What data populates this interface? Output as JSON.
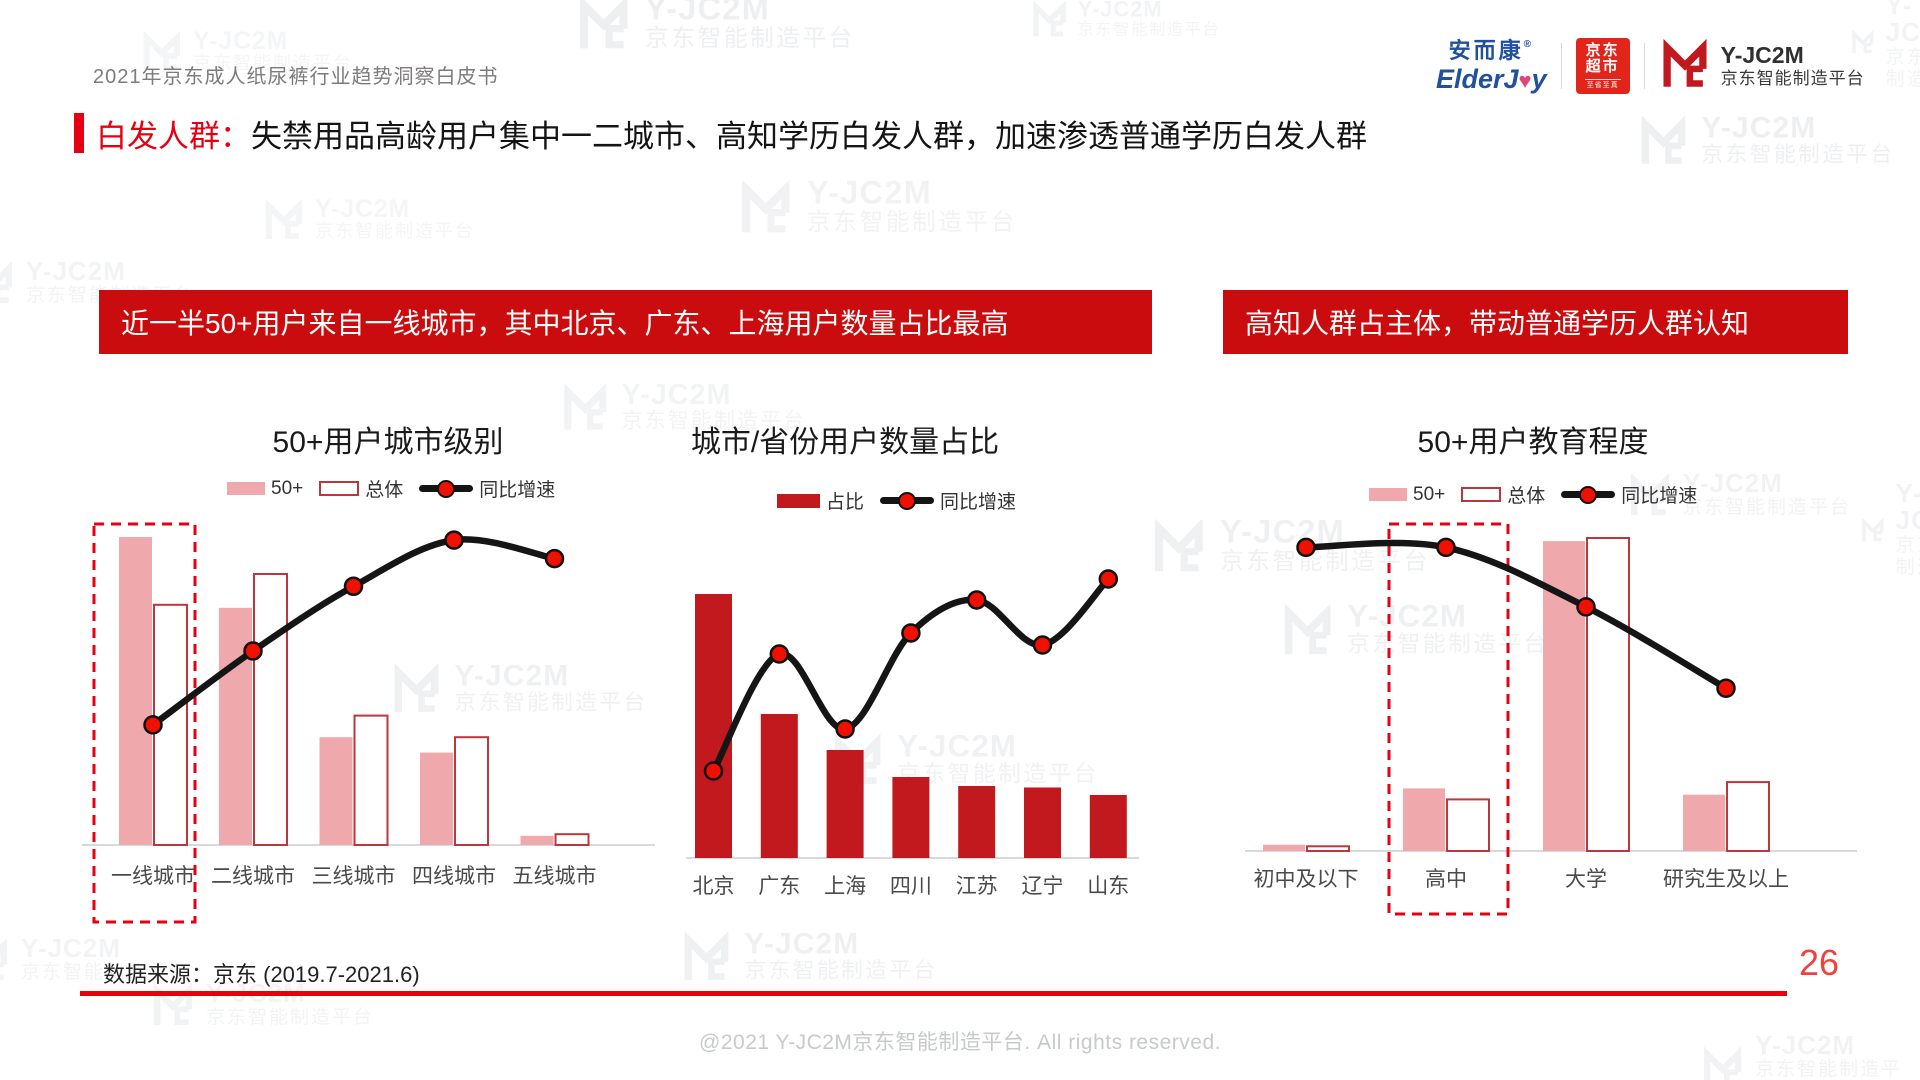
{
  "page": {
    "header_title": "2021年京东成人纸尿裤行业趋势洞察白皮书",
    "page_number": "26",
    "source_note": "数据来源：京东 (2019.7-2021.6)",
    "copyright": "@2021 Y-JC2M京东智能制造平台. All rights reserved.",
    "watermark": {
      "line1": "Y-JC2M",
      "line2": "京东智能制造平台"
    }
  },
  "logos": {
    "elderjoy_cn": "安而康",
    "elderjoy_reg": "®",
    "elderjoy_en_1": "ElderJ",
    "elderjoy_heart": "♥",
    "elderjoy_en_2": "y",
    "jd_line1": "京东",
    "jd_line2": "超市",
    "jd_slogan": "至省至真",
    "yjc2m_line1": "Y-JC2M",
    "yjc2m_line2": "京东智能制造平台"
  },
  "headline": {
    "tag": "白发人群：",
    "text": "失禁用品高龄用户集中一二城市、高知学历白发人群，加速渗透普通学历白发人群"
  },
  "banners": [
    {
      "text": "近一半50+用户来自一线城市，其中北京、广东、上海用户数量占比最高"
    },
    {
      "text": "高知人群占主体，带动普通学历人群认知"
    }
  ],
  "colors": {
    "accent_red": "#E60012",
    "banner_red": "#CB0C0F",
    "bar_red": "#C2191F",
    "bar_pink": "#EFA8AC",
    "bar_outline_red": "#B9383E",
    "line_black": "#151515",
    "dot_red": "#F01000",
    "axis_gray": "#D9D9D9",
    "label_gray": "#4A4A4A"
  },
  "chart_data": [
    {
      "type": "bar",
      "subtype": "grouped-bar-with-line",
      "title": "50+用户城市级别",
      "categories": [
        "一线城市",
        "二线城市",
        "三线城市",
        "四线城市",
        "五线城市"
      ],
      "series": [
        {
          "name": "50+",
          "style": "pink-solid",
          "values_rel": [
            1.0,
            0.77,
            0.35,
            0.3,
            0.03
          ]
        },
        {
          "name": "总体",
          "style": "white-red-outline",
          "values_rel": [
            0.78,
            0.88,
            0.42,
            0.35,
            0.035
          ]
        }
      ],
      "line_series": {
        "name": "同比增速",
        "marker": "red-dot",
        "values_rel": [
          0.39,
          0.63,
          0.84,
          0.99,
          0.93
        ]
      },
      "highlight": {
        "category": "一线城市",
        "style": "red-dashed-box"
      },
      "value_axis": "hidden (relative heights, no tick labels shown)",
      "legend_position": "top",
      "grid": false
    },
    {
      "type": "bar",
      "subtype": "bar-with-line",
      "title": "城市/省份用户数量占比",
      "categories": [
        "北京",
        "广东",
        "上海",
        "四川",
        "江苏",
        "辽宁",
        "山东"
      ],
      "series": [
        {
          "name": "占比",
          "style": "red-solid",
          "values_rel": [
            0.88,
            0.48,
            0.36,
            0.27,
            0.24,
            0.235,
            0.21
          ]
        }
      ],
      "line_series": {
        "name": "同比增速",
        "marker": "red-dot",
        "values_rel": [
          0.29,
          0.68,
          0.43,
          0.75,
          0.86,
          0.71,
          0.93
        ]
      },
      "highlight": null,
      "value_axis": "hidden (relative heights, no tick labels shown)",
      "legend_position": "top",
      "grid": false
    },
    {
      "type": "bar",
      "subtype": "grouped-bar-with-line",
      "title": "50+用户教育程度",
      "categories": [
        "初中及以下",
        "高中",
        "大学",
        "研究生及以上"
      ],
      "series": [
        {
          "name": "50+",
          "style": "pink-solid",
          "values_rel": [
            0.02,
            0.2,
            0.99,
            0.18
          ]
        },
        {
          "name": "总体",
          "style": "white-red-outline",
          "values_rel": [
            0.015,
            0.165,
            1.0,
            0.22
          ]
        }
      ],
      "line_series": {
        "name": "同比增速",
        "marker": "red-dot",
        "values_rel": [
          0.97,
          0.97,
          0.78,
          0.52
        ]
      },
      "highlight": {
        "category": "高中",
        "style": "red-dashed-box"
      },
      "value_axis": "hidden (relative heights, no tick labels shown)",
      "legend_position": "top",
      "grid": false
    }
  ]
}
